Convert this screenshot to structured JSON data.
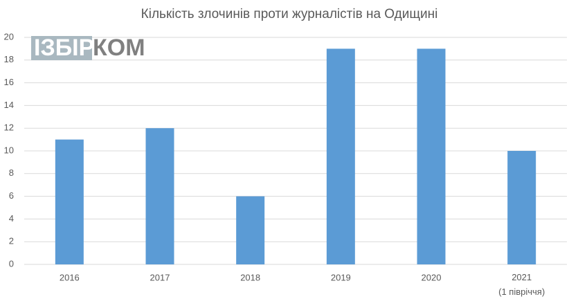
{
  "chart_data": {
    "type": "bar",
    "title": "Кількість злочинів проти журналістів на Одищині",
    "watermark": [
      "ІЗБІР",
      "КОМ"
    ],
    "categories": [
      "2016",
      "2017",
      "2018",
      "2019",
      "2020",
      "2021\n(1 півріччя)"
    ],
    "values": [
      11,
      12,
      6,
      19,
      19,
      10
    ],
    "color": "#5b9bd5",
    "ylim": [
      0,
      20
    ],
    "yticks": [
      0,
      2,
      4,
      6,
      8,
      10,
      12,
      14,
      16,
      18,
      20
    ],
    "grid": true
  }
}
